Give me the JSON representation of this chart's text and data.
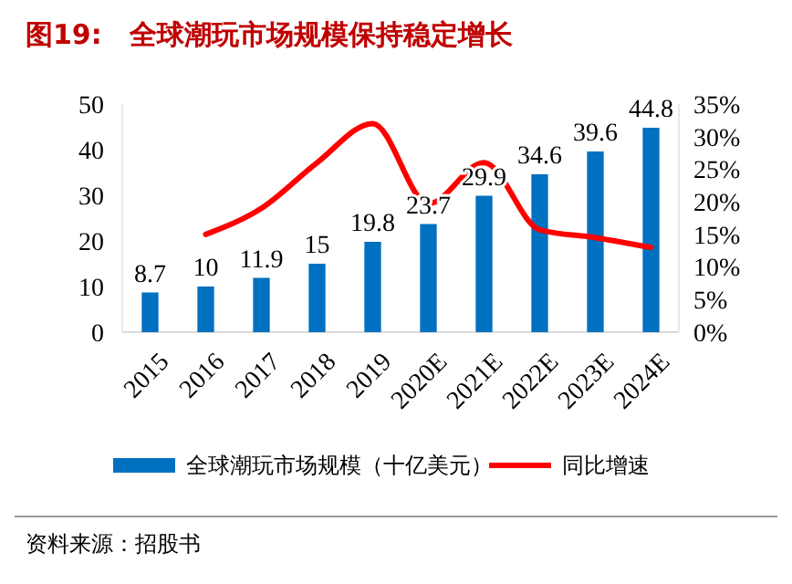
{
  "chart_data": {
    "type": "bar",
    "title": "图19:　全球潮玩市场规模保持稳定增长",
    "categories": [
      "2015",
      "2016",
      "2017",
      "2018",
      "2019",
      "2020E",
      "2021E",
      "2022E",
      "2023E",
      "2024E"
    ],
    "series": [
      {
        "name": "全球潮玩市场规模（十亿美元）",
        "color": "#0070c0",
        "values": [
          8.7,
          10,
          11.9,
          15,
          19.8,
          23.7,
          29.9,
          34.6,
          39.6,
          44.8
        ],
        "value_labels": [
          "8.7",
          "10",
          "11.9",
          "15",
          "19.8",
          "23.7",
          "29.9",
          "34.6",
          "39.6",
          "44.8"
        ]
      },
      {
        "name": "同比增速",
        "type": "line",
        "axis": "y2",
        "color": "#ff0000",
        "values": [
          null,
          15,
          19,
          26,
          32,
          19.7,
          26,
          15.7,
          14.5,
          13
        ]
      }
    ],
    "ylim": [
      0,
      50
    ],
    "yticks": [
      0,
      10,
      20,
      30,
      40,
      50
    ],
    "y2lim": [
      0,
      35
    ],
    "y2ticks": [
      {
        "value": 0,
        "label": "0%"
      },
      {
        "value": 5,
        "label": "5%"
      },
      {
        "value": 10,
        "label": "10%"
      },
      {
        "value": 15,
        "label": "15%"
      },
      {
        "value": 20,
        "label": "20%"
      },
      {
        "value": 25,
        "label": "25%"
      },
      {
        "value": 30,
        "label": "30%"
      },
      {
        "value": 35,
        "label": "35%"
      }
    ],
    "legend": "bottom",
    "grid": false,
    "annotations": [
      "资料来源：招股书"
    ]
  }
}
